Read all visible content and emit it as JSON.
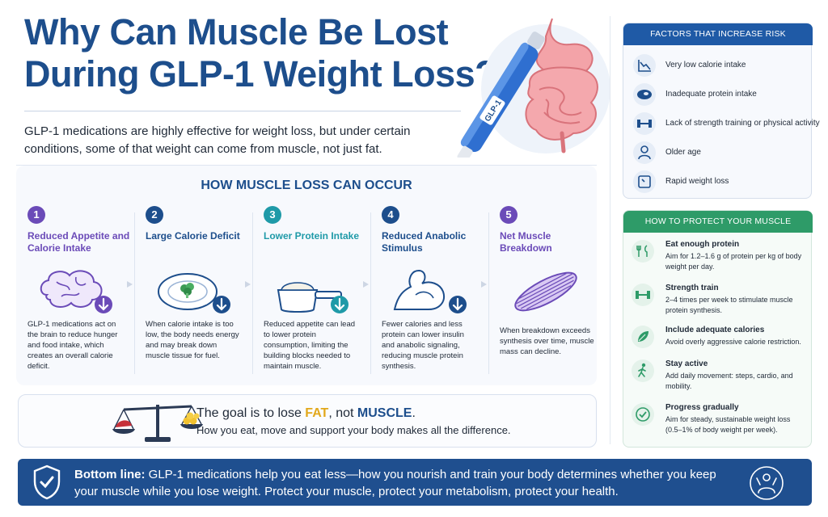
{
  "title": {
    "line1": "Why Can Muscle Be Lost",
    "line2": "During GLP-1 Weight Loss?"
  },
  "intro": "GLP-1 medications are highly effective for weight loss, but under certain conditions, some of that weight can come from muscle, not just fat.",
  "hero": {
    "pen_label": "GLP-1"
  },
  "steps_heading": "HOW MUSCLE LOSS CAN OCCUR",
  "steps": [
    {
      "num": "1",
      "title": "Reduced Appetite and Calorie Intake",
      "text": "GLP-1 medications act on the brain to reduce hunger and food intake, which creates an overall calorie deficit.",
      "color": "#6b4bb8",
      "icon": "brain-icon"
    },
    {
      "num": "2",
      "title": "Large Calorie Deficit",
      "text": "When calorie intake is too low, the body needs energy and may break down muscle tissue for fuel.",
      "color": "#1d4e8c",
      "icon": "plate-icon"
    },
    {
      "num": "3",
      "title": "Lower Protein Intake",
      "text": "Reduced appetite can lead to lower protein consumption, limiting the building blocks needed to maintain muscle.",
      "color": "#1f9aa8",
      "icon": "protein-scoop-icon"
    },
    {
      "num": "4",
      "title": "Reduced Anabolic Stimulus",
      "text": "Fewer calories and less protein can lower insulin and anabolic signaling, reducing muscle protein synthesis.",
      "color": "#1d4e8c",
      "icon": "flexed-arm-icon"
    },
    {
      "num": "5",
      "title": "Net Muscle Breakdown",
      "text": "When breakdown exceeds synthesis over time, muscle mass can decline.",
      "color": "#6b4bb8",
      "icon": "muscle-fiber-icon"
    }
  ],
  "goal": {
    "prefix": "The goal is to lose ",
    "fat": "FAT",
    "middle": ", not ",
    "muscle": "MUSCLE",
    "suffix": ".",
    "sub": "How you eat, move and support your body makes all the difference."
  },
  "risk": {
    "header": "FACTORS THAT INCREASE RISK",
    "items": [
      {
        "label": "Very low calorie intake",
        "icon": "downtrend-chart-icon"
      },
      {
        "label": "Inadequate protein intake",
        "icon": "steak-icon"
      },
      {
        "label": "Lack of strength training or physical activity",
        "icon": "dumbbell-icon"
      },
      {
        "label": "Older age",
        "icon": "older-person-icon"
      },
      {
        "label": "Rapid weight loss",
        "icon": "scale-icon"
      }
    ]
  },
  "protect": {
    "header": "HOW TO PROTECT YOUR MUSCLE",
    "items": [
      {
        "title": "Eat enough protein",
        "desc": "Aim for 1.2–1.6 g of protein per kg of body weight per day.",
        "icon": "fork-knife-icon"
      },
      {
        "title": "Strength train",
        "desc": "2–4 times per week to stimulate muscle protein synthesis.",
        "icon": "dumbbell-icon"
      },
      {
        "title": "Include adequate calories",
        "desc": "Avoid overly aggressive calorie restriction.",
        "icon": "leaf-icon"
      },
      {
        "title": "Stay active",
        "desc": "Add daily movement: steps, cardio, and mobility.",
        "icon": "walking-person-icon"
      },
      {
        "title": "Progress gradually",
        "desc": "Aim for steady, sustainable weight loss (0.5–1% of body weight per week).",
        "icon": "check-circle-icon"
      }
    ]
  },
  "bottom": {
    "lead": "Bottom line:",
    "text": " GLP-1 medications help you eat less—how you nourish and train your body determines whether you keep your muscle while you lose weight. Protect your muscle, protect your metabolism, protect your health."
  },
  "colors": {
    "navy": "#1d4e8c",
    "risk_header": "#1f5aa6",
    "protect_header": "#2e9b68",
    "fat_accent": "#e2a81b",
    "bottom_bg": "#1f4f8f"
  }
}
